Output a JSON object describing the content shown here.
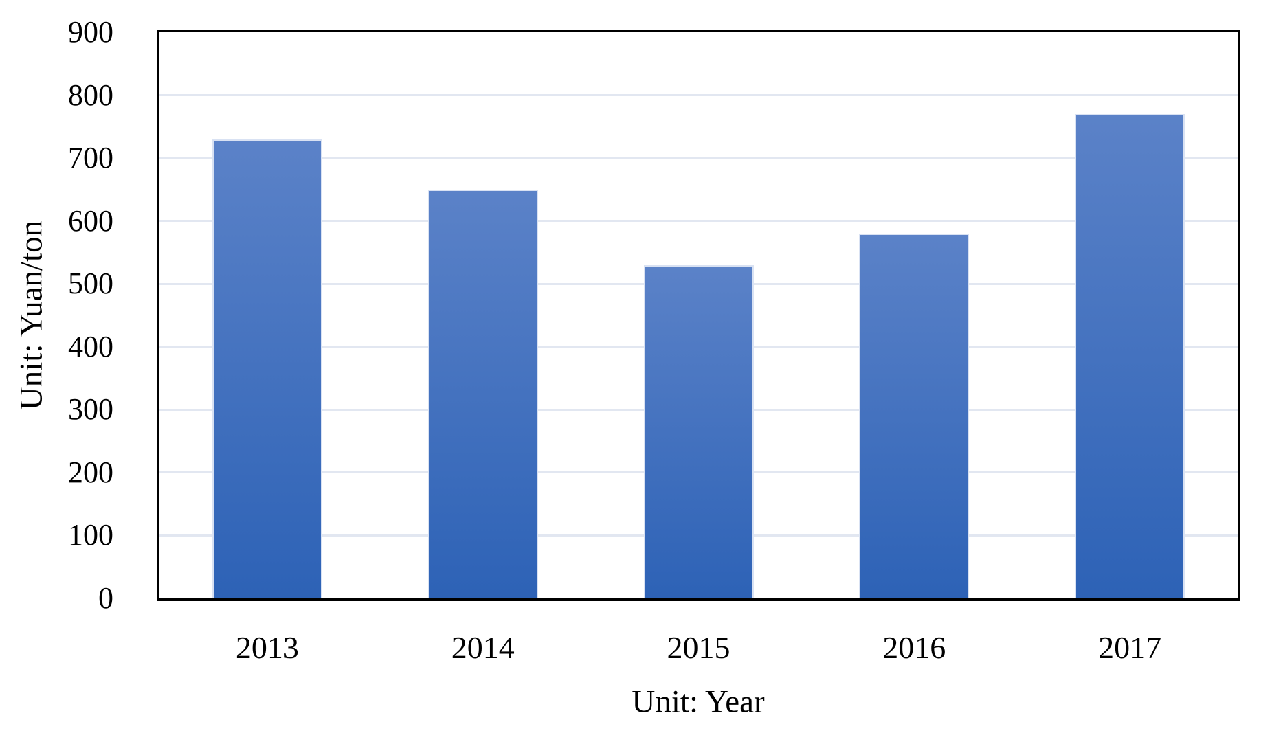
{
  "chart_data": {
    "type": "bar",
    "categories": [
      "2013",
      "2014",
      "2015",
      "2016",
      "2017"
    ],
    "values": [
      730,
      650,
      530,
      580,
      770
    ],
    "title": "",
    "xlabel": "Unit: Year",
    "ylabel": "Unit: Yuan/ton",
    "ylim": [
      0,
      900
    ],
    "ytick_step": 100,
    "yticks": [
      "0",
      "100",
      "200",
      "300",
      "400",
      "500",
      "600",
      "700",
      "800",
      "900"
    ],
    "grid": "horizontal-only",
    "legend": "none",
    "colors": {
      "bar_gradient_top": "#5b82c8",
      "bar_gradient_bottom": "#2d62b6",
      "bar_edge": "#d9e2f3",
      "gridline": "#e2e7f1",
      "frame": "#000000",
      "background": "#ffffff",
      "text": "#000000"
    }
  }
}
